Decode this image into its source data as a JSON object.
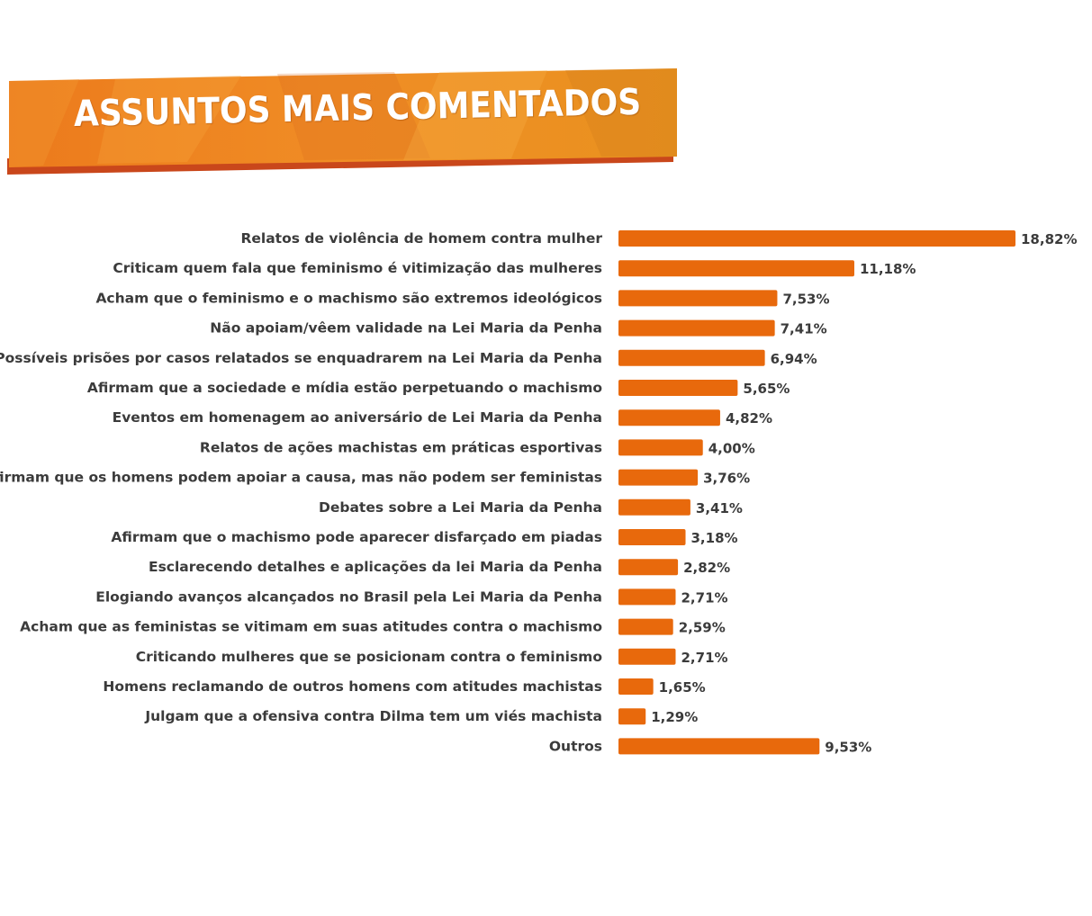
{
  "banner": {
    "title": "ASSUNTOS MAIS COMENTADOS"
  },
  "colors": {
    "bar": "#e8690c",
    "banner_main": "#ee8a22",
    "banner_shadow": "#c9471b"
  },
  "chart_data": {
    "type": "bar",
    "orientation": "horizontal",
    "title": "ASSUNTOS MAIS COMENTADOS",
    "categories": [
      "Relatos de violência de homem contra mulher",
      "Criticam quem fala que feminismo é vitimização das mulheres",
      "Acham que o feminismo e o machismo são extremos ideológicos",
      "Não apoiam/vêem validade na Lei Maria da Penha",
      "Possíveis prisões por casos relatados se enquadrarem na Lei Maria da Penha",
      "Afirmam que a sociedade e mídia estão perpetuando o machismo",
      "Eventos em homenagem ao aniversário de Lei Maria da Penha",
      "Relatos de ações machistas em práticas esportivas",
      "Afirmam que os homens podem apoiar a causa, mas não podem ser feministas",
      "Debates sobre a Lei Maria da Penha",
      "Afirmam que o machismo pode aparecer disfarçado em piadas",
      "Esclarecendo detalhes  e aplicações da lei Maria da Penha",
      "Elogiando avanços alcançados no Brasil pela Lei Maria da Penha",
      "Acham que as feministas se vitimam em suas atitudes contra o machismo",
      "Criticando mulheres que se posicionam contra o feminismo",
      "Homens reclamando de outros homens com atitudes machistas",
      "Julgam que a ofensiva contra Dilma tem um viés machista",
      "Outros"
    ],
    "values": [
      18.82,
      11.18,
      7.53,
      7.41,
      6.94,
      5.65,
      4.82,
      4.0,
      3.76,
      3.41,
      3.18,
      2.82,
      2.71,
      2.59,
      2.71,
      1.65,
      1.29,
      9.53
    ],
    "value_labels": [
      "18,82%",
      "11,18%",
      "7,53%",
      "7,41%",
      "6,94%",
      "5,65%",
      "4,82%",
      "4,00%",
      "3,76%",
      "3,41%",
      "3,18%",
      "2,82%",
      "2,71%",
      "2,59%",
      "2,71%",
      "1,65%",
      "1,29%",
      "9,53%"
    ],
    "xlim": [
      0,
      18.82
    ],
    "grid": false,
    "legend": "none"
  }
}
